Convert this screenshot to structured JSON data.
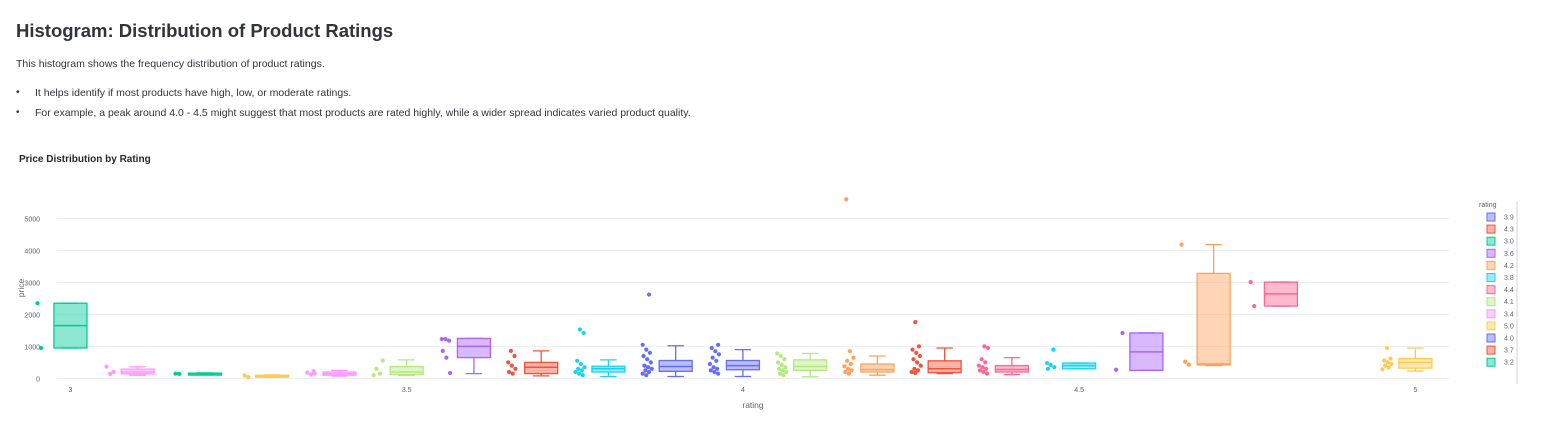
{
  "page": {
    "title": "Histogram: Distribution of Product Ratings",
    "intro": "This histogram shows the frequency distribution of product ratings.",
    "bullets": [
      "It helps identify if most products have high, low, or moderate ratings.",
      "For example, a peak around 4.0 - 4.5 might suggest that most products are rated highly, while a wider spread indicates varied product quality."
    ]
  },
  "chart_data": {
    "type": "box",
    "title": "Price Distribution by Rating",
    "xlabel": "rating",
    "ylabel": "price",
    "xlim": [
      2.98,
      5.05
    ],
    "ylim": [
      -50,
      5700
    ],
    "xticks": [
      3,
      3.5,
      4,
      4.5,
      5
    ],
    "xtick_labels": [
      "3",
      "3.5",
      "4",
      "4.5",
      "5"
    ],
    "yticks": [
      0,
      1000,
      2000,
      3000,
      4000,
      5000
    ],
    "ytick_labels": [
      "0",
      "1000",
      "2000",
      "3000",
      "4000",
      "5000"
    ],
    "grid": true,
    "legend_title": "rating",
    "legend_position": "right",
    "legend": [
      {
        "label": "3.9",
        "color": "#636efa"
      },
      {
        "label": "4.3",
        "color": "#ef553b"
      },
      {
        "label": "3.0",
        "color": "#00cc96"
      },
      {
        "label": "3.6",
        "color": "#ab63fa"
      },
      {
        "label": "4.2",
        "color": "#ffa15a"
      },
      {
        "label": "3.8",
        "color": "#19d3f3"
      },
      {
        "label": "4.4",
        "color": "#ff6692"
      },
      {
        "label": "4.1",
        "color": "#b6e880"
      },
      {
        "label": "3.4",
        "color": "#ff97ff"
      },
      {
        "label": "5.0",
        "color": "#fecb52"
      },
      {
        "label": "4.0",
        "color": "#636efa"
      },
      {
        "label": "3.7",
        "color": "#ef553b"
      },
      {
        "label": "3.2",
        "color": "#00cc96"
      }
    ],
    "series": [
      {
        "name": "3.0",
        "x": 3.0,
        "color": "#00cc96",
        "q1": 950,
        "median": 1650,
        "q3": 2350,
        "whisker_low": 950,
        "whisker_high": 2350,
        "points": [
          2350,
          950
        ]
      },
      {
        "name": "3.1",
        "x": 3.1,
        "color": "#ff97ff",
        "q1": 140,
        "median": 200,
        "q3": 290,
        "whisker_low": 100,
        "whisker_high": 360,
        "points": [
          370,
          140,
          200
        ]
      },
      {
        "name": "3.2",
        "x": 3.2,
        "color": "#00cc96",
        "q1": 130,
        "median": 150,
        "q3": 165,
        "whisker_low": 130,
        "whisker_high": 170,
        "points": [
          150,
          140
        ]
      },
      {
        "name": "3.3",
        "x": 3.3,
        "color": "#fecb52",
        "q1": 40,
        "median": 70,
        "q3": 100,
        "whisker_low": 40,
        "whisker_high": 110,
        "points": [
          90,
          40
        ]
      },
      {
        "name": "3.4",
        "x": 3.4,
        "color": "#ff97ff",
        "q1": 100,
        "median": 150,
        "q3": 200,
        "whisker_low": 70,
        "whisker_high": 250,
        "points": [
          230,
          180,
          120,
          150
        ]
      },
      {
        "name": "3.5",
        "x": 3.5,
        "color": "#b6e880",
        "q1": 120,
        "median": 200,
        "q3": 370,
        "whisker_low": 90,
        "whisker_high": 580,
        "points": [
          560,
          300,
          150,
          100
        ]
      },
      {
        "name": "3.6",
        "x": 3.6,
        "color": "#ab63fa",
        "q1": 650,
        "median": 1000,
        "q3": 1250,
        "whisker_low": 150,
        "whisker_high": 1250,
        "points": [
          1230,
          1230,
          1180,
          860,
          650,
          170
        ]
      },
      {
        "name": "3.7",
        "x": 3.7,
        "color": "#ef553b",
        "q1": 150,
        "median": 350,
        "q3": 500,
        "whisker_low": 80,
        "whisker_high": 860,
        "points": [
          860,
          700,
          500,
          400,
          300,
          200,
          150
        ]
      },
      {
        "name": "3.8",
        "x": 3.8,
        "color": "#19d3f3",
        "q1": 200,
        "median": 300,
        "q3": 380,
        "whisker_low": 60,
        "whisker_high": 580,
        "points": [
          1530,
          1420,
          550,
          450,
          350,
          300,
          250,
          200,
          150,
          100
        ]
      },
      {
        "name": "3.9",
        "x": 3.9,
        "color": "#636efa",
        "q1": 220,
        "median": 370,
        "q3": 560,
        "whisker_low": 60,
        "whisker_high": 1020,
        "points": [
          2620,
          1050,
          900,
          800,
          700,
          600,
          500,
          400,
          350,
          300,
          250,
          200,
          150,
          100
        ]
      },
      {
        "name": "4.0",
        "x": 4.0,
        "color": "#636efa",
        "q1": 270,
        "median": 400,
        "q3": 560,
        "whisker_low": 60,
        "whisker_high": 900,
        "points": [
          1050,
          950,
          850,
          750,
          650,
          550,
          450,
          350,
          300,
          250,
          200,
          150
        ]
      },
      {
        "name": "4.1",
        "x": 4.1,
        "color": "#b6e880",
        "q1": 250,
        "median": 370,
        "q3": 580,
        "whisker_low": 50,
        "whisker_high": 780,
        "points": [
          780,
          700,
          600,
          500,
          420,
          350,
          300,
          250,
          200,
          150,
          100
        ]
      },
      {
        "name": "4.2",
        "x": 4.2,
        "color": "#ffa15a",
        "q1": 200,
        "median": 280,
        "q3": 450,
        "whisker_low": 100,
        "whisker_high": 700,
        "points": [
          5600,
          850,
          650,
          550,
          450,
          380,
          300,
          250,
          200,
          150
        ]
      },
      {
        "name": "4.3",
        "x": 4.3,
        "color": "#ef553b",
        "q1": 180,
        "median": 300,
        "q3": 550,
        "whisker_low": 150,
        "whisker_high": 950,
        "points": [
          1760,
          1000,
          900,
          800,
          700,
          600,
          500,
          400,
          300,
          250,
          200,
          170
        ]
      },
      {
        "name": "4.4",
        "x": 4.4,
        "color": "#ff6692",
        "q1": 200,
        "median": 280,
        "q3": 400,
        "whisker_low": 120,
        "whisker_high": 650,
        "points": [
          1000,
          950,
          600,
          500,
          400,
          350,
          300,
          250,
          200,
          150
        ]
      },
      {
        "name": "4.5",
        "x": 4.5,
        "color": "#19d3f3",
        "q1": 300,
        "median": 400,
        "q3": 480,
        "whisker_low": 300,
        "whisker_high": 480,
        "points": [
          900,
          480,
          420,
          350,
          300
        ]
      },
      {
        "name": "4.6",
        "x": 4.6,
        "color": "#ab63fa",
        "q1": 250,
        "median": 830,
        "q3": 1420,
        "whisker_low": 250,
        "whisker_high": 1420,
        "points": [
          1420,
          270
        ]
      },
      {
        "name": "4.7",
        "x": 4.7,
        "color": "#ffa15a",
        "q1": 420,
        "median": 450,
        "q3": 3280,
        "whisker_low": 400,
        "whisker_high": 4180,
        "points": [
          4180,
          520,
          430
        ]
      },
      {
        "name": "4.8",
        "x": 4.8,
        "color": "#ff6692",
        "q1": 2260,
        "median": 2640,
        "q3": 3010,
        "whisker_low": 2260,
        "whisker_high": 3010,
        "points": [
          3010,
          2260
        ]
      },
      {
        "name": "5.0",
        "x": 5.0,
        "color": "#fecb52",
        "q1": 320,
        "median": 500,
        "q3": 620,
        "whisker_low": 230,
        "whisker_high": 950,
        "points": [
          950,
          620,
          560,
          500,
          450,
          400,
          340,
          280
        ]
      }
    ]
  }
}
